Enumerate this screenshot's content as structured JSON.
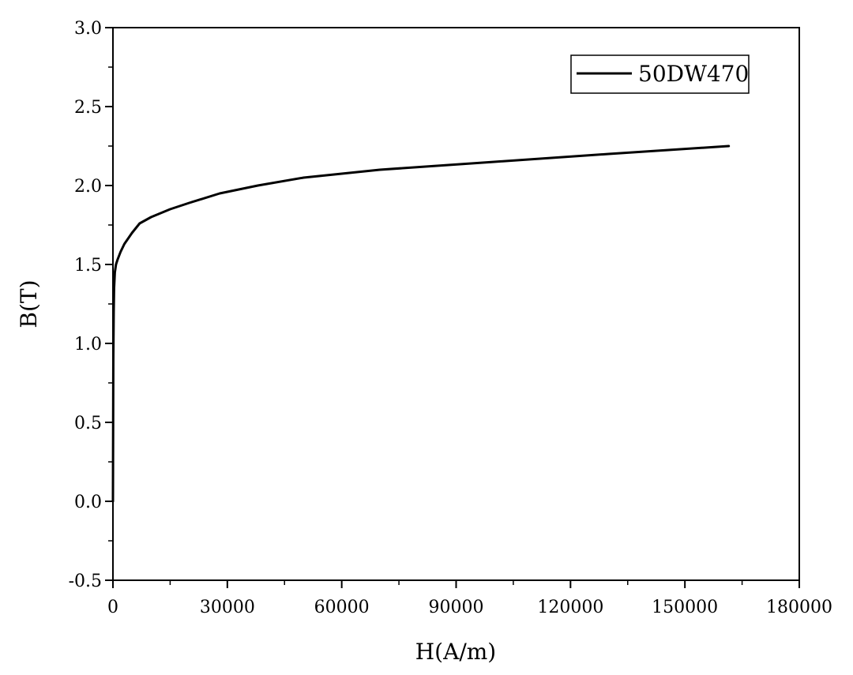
{
  "chart_data": {
    "type": "line",
    "title": "",
    "xlabel": "H(A/m)",
    "ylabel": "B(T)",
    "xlim": [
      0,
      180000
    ],
    "ylim": [
      -0.5,
      3.0
    ],
    "x_ticks": [
      0,
      30000,
      60000,
      90000,
      120000,
      150000,
      180000
    ],
    "x_tick_labels": [
      "0",
      "30000",
      "60000",
      "90000",
      "120000",
      "150000",
      "180000"
    ],
    "y_ticks": [
      -0.5,
      0.0,
      0.5,
      1.0,
      1.5,
      2.0,
      2.5,
      3.0
    ],
    "y_tick_labels": [
      "-0.5",
      "0.0",
      "0.5",
      "1.0",
      "1.5",
      "2.0",
      "2.5",
      "3.0"
    ],
    "grid": false,
    "legend_position": "top-right",
    "line_color": "#000000",
    "series": [
      {
        "name": "50DW470",
        "x": [
          0,
          100,
          200,
          300,
          500,
          800,
          1200,
          2000,
          3000,
          5000,
          7000,
          10000,
          15000,
          20000,
          28000,
          38000,
          50000,
          70000,
          100000,
          130000,
          161500
        ],
        "y": [
          0.0,
          0.9,
          1.2,
          1.35,
          1.45,
          1.5,
          1.53,
          1.58,
          1.63,
          1.7,
          1.76,
          1.8,
          1.85,
          1.89,
          1.95,
          2.0,
          2.05,
          2.1,
          2.15,
          2.2,
          2.25
        ]
      }
    ]
  }
}
